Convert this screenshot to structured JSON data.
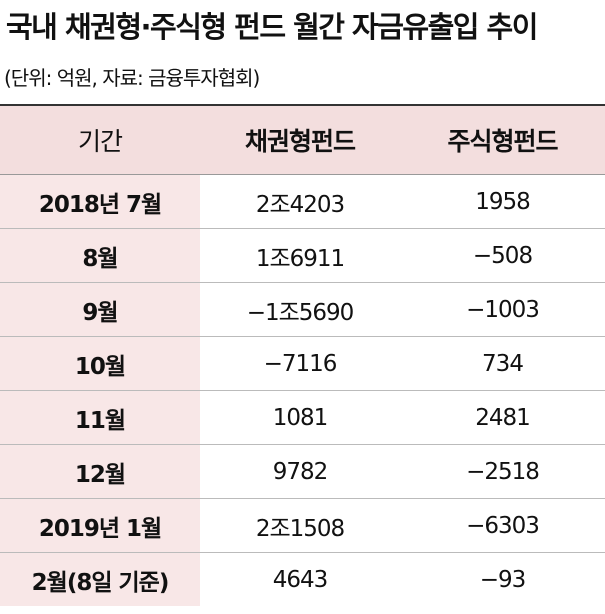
{
  "header": {
    "title": "국내 채권형·주식형 펀드 월간 자금유출입 추이",
    "subtitle": "(단위: 억원, 자료: 금융투자협회)"
  },
  "table": {
    "columns": [
      "기간",
      "채권형펀드",
      "주식형펀드"
    ],
    "rows": [
      [
        "2018년 7월",
        "2조4203",
        "1958"
      ],
      [
        "8월",
        "1조6911",
        "−508"
      ],
      [
        "9월",
        "−1조5690",
        "−1003"
      ],
      [
        "10월",
        "−7116",
        "734"
      ],
      [
        "11월",
        "1081",
        "2481"
      ],
      [
        "12월",
        "9782",
        "−2518"
      ],
      [
        "2019년 1월",
        "2조1508",
        "−6303"
      ],
      [
        "2월(8일 기준)",
        "4643",
        "−93"
      ]
    ]
  }
}
